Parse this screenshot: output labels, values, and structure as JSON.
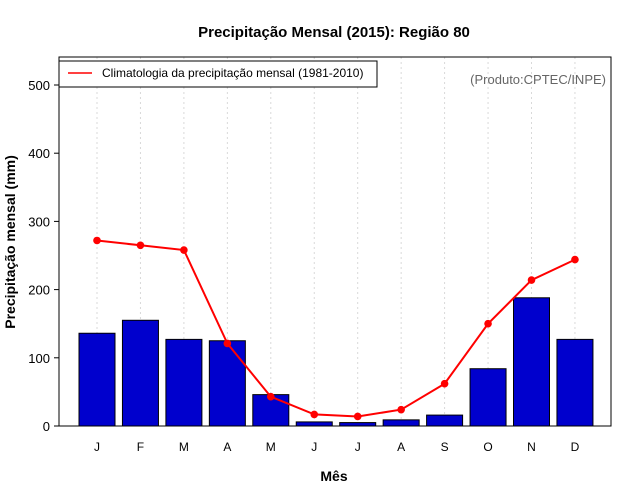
{
  "chart_data": {
    "type": "bar",
    "title": "Precipitação Mensal (2015): Região 80",
    "xlabel": "Mês",
    "ylabel": "Precipitação mensal (mm)",
    "credit": "(Produto:CPTEC/INPE)",
    "categories": [
      "J",
      "F",
      "M",
      "A",
      "M",
      "J",
      "J",
      "A",
      "S",
      "O",
      "N",
      "D"
    ],
    "ylim": [
      0,
      535
    ],
    "yticks": [
      0,
      100,
      200,
      300,
      400,
      500
    ],
    "grid": "vertical-dotted",
    "legend_position": "top-left",
    "series": [
      {
        "name": "Precipitação mensal 2015",
        "kind": "bar",
        "color": "#0000cd",
        "values": [
          136,
          155,
          127,
          125,
          46,
          6,
          5,
          9,
          16,
          84,
          188,
          127
        ]
      },
      {
        "name": "Climatologia da precipitação mensal (1981-2010)",
        "kind": "line",
        "color": "#ff0000",
        "values": [
          272,
          265,
          258,
          121,
          43,
          17,
          14,
          24,
          62,
          150,
          214,
          244
        ]
      }
    ]
  }
}
